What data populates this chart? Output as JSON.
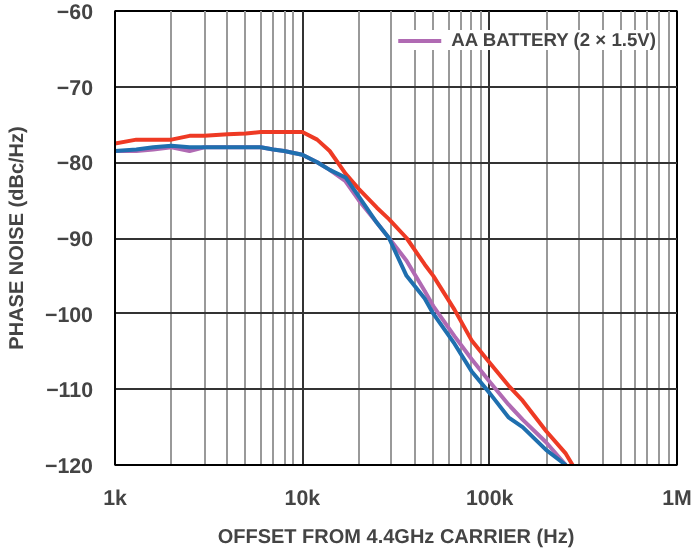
{
  "chart_data": {
    "type": "line",
    "xlabel": "OFFSET FROM 4.4GHz CARRIER (Hz)",
    "ylabel": "PHASE NOISE (dBc/Hz)",
    "log": "x",
    "grid": true,
    "legend": "top right",
    "line_style": "solid",
    "xlim": [
      1000,
      1000000
    ],
    "ylim": [
      -120,
      -60
    ],
    "xticks": [
      {
        "value": 1000,
        "label": "1k"
      },
      {
        "value": 10000,
        "label": "10k"
      },
      {
        "value": 100000,
        "label": "100k"
      },
      {
        "value": 1000000,
        "label": "1M"
      }
    ],
    "yticks": [
      {
        "value": -60,
        "label": "−60"
      },
      {
        "value": -70,
        "label": "−70"
      },
      {
        "value": -80,
        "label": "−80"
      },
      {
        "value": -90,
        "label": "−90"
      },
      {
        "value": -100,
        "label": "−100"
      },
      {
        "value": -110,
        "label": "−110"
      },
      {
        "value": -120,
        "label": "−120"
      }
    ],
    "x": [
      1000,
      1300,
      1600,
      2000,
      2500,
      3000,
      4000,
      5000,
      6000,
      7000,
      8000,
      10000,
      12000,
      14000,
      17000,
      20000,
      25000,
      29000,
      36000,
      45000,
      50000,
      65000,
      80000,
      100000,
      126000,
      150000,
      200000,
      255000,
      277000
    ],
    "series": [
      {
        "color": "#ee3a24",
        "values": [
          -77.5,
          -77,
          -77,
          -77,
          -76.5,
          -76.5,
          -76.3,
          -76.2,
          -76,
          -76,
          -76,
          -76,
          -77,
          -78.5,
          -81.5,
          -83.5,
          -86,
          -87.5,
          -90,
          -93.5,
          -95,
          -99.5,
          -103.5,
          -106.5,
          -109.5,
          -111.5,
          -115.5,
          -118.5,
          -120
        ]
      },
      {
        "name": "AA BATTERY (2 × 1.5V)",
        "color": "#b06ab3",
        "values": [
          -78.5,
          -78.5,
          -78.3,
          -78,
          -78.5,
          -78,
          -78,
          -78,
          -78,
          -78.3,
          -78.5,
          -79,
          -80,
          -81,
          -82.5,
          -85,
          -88,
          -90,
          -93,
          -97,
          -99,
          -103,
          -106,
          -109,
          -112,
          -114,
          -117,
          -120,
          null
        ]
      },
      {
        "color": "#1f6faf",
        "values": [
          -78.5,
          -78.3,
          -78,
          -77.8,
          -78,
          -78,
          -78,
          -78,
          -78,
          -78.3,
          -78.5,
          -79,
          -80,
          -81,
          -82,
          -84.5,
          -88,
          -90,
          -95,
          -98,
          -100,
          -104,
          -107.6,
          -110.5,
          -113.7,
          -115,
          -118,
          -120,
          null
        ]
      }
    ]
  }
}
